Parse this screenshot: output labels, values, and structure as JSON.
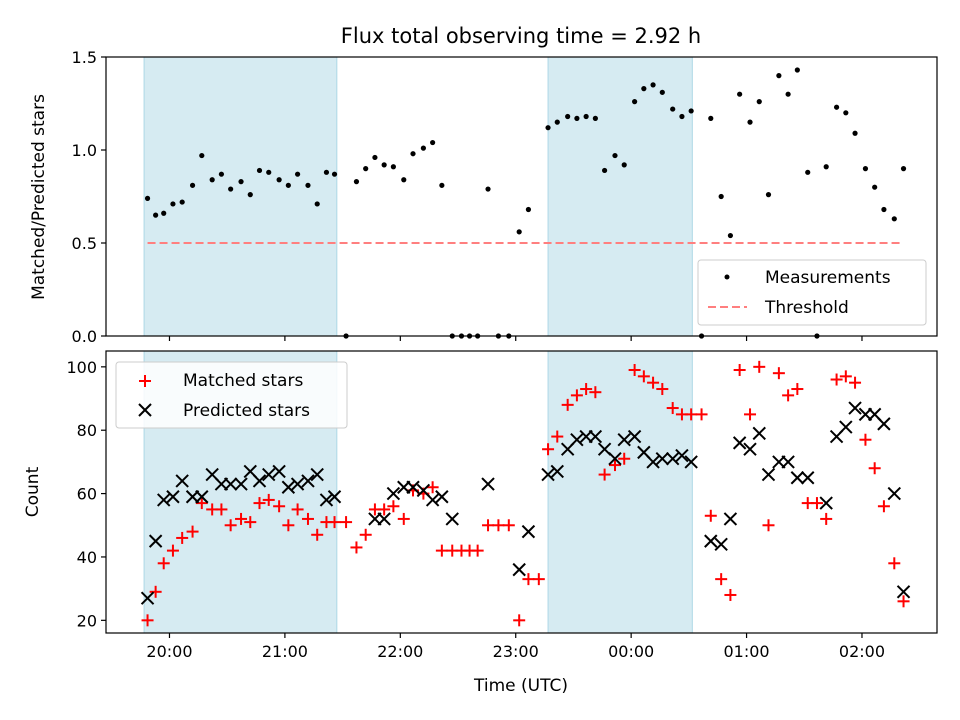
{
  "chart_data": {
    "title": "Flux total observing time = 2.92 h",
    "xlabel": "Time (UTC)",
    "x_unit": "hours (UTC) past 00:00 of first night; 24+ = next day",
    "xlim": [
      19.45,
      26.65
    ],
    "x_ticks": [
      {
        "value": 20,
        "label": "20:00"
      },
      {
        "value": 21,
        "label": "21:00"
      },
      {
        "value": 22,
        "label": "22:00"
      },
      {
        "value": 23,
        "label": "23:00"
      },
      {
        "value": 24,
        "label": "00:00"
      },
      {
        "value": 25,
        "label": "01:00"
      },
      {
        "value": 26,
        "label": "02:00"
      }
    ],
    "shaded_intervals": [
      [
        19.78,
        21.45
      ],
      [
        23.28,
        24.53
      ]
    ],
    "shade_color": "#add8e6",
    "panels": [
      {
        "id": "ratio",
        "type": "scatter",
        "ylabel": "Matched/Predicted stars",
        "ylim": [
          0,
          1.5
        ],
        "y_ticks": [
          0.0,
          0.5,
          1.0,
          1.5
        ],
        "y_tick_labels": [
          "0.0",
          "0.5",
          "1.0",
          "1.5"
        ],
        "legend_position": "lower-right",
        "series": [
          {
            "name": "Measurements",
            "marker": "dot",
            "color": "#000000",
            "points": [
              [
                19.81,
                0.74
              ],
              [
                19.88,
                0.65
              ],
              [
                19.95,
                0.66
              ],
              [
                20.03,
                0.71
              ],
              [
                20.11,
                0.72
              ],
              [
                20.2,
                0.81
              ],
              [
                20.28,
                0.97
              ],
              [
                20.37,
                0.84
              ],
              [
                20.45,
                0.87
              ],
              [
                20.53,
                0.79
              ],
              [
                20.62,
                0.83
              ],
              [
                20.7,
                0.76
              ],
              [
                20.78,
                0.89
              ],
              [
                20.86,
                0.88
              ],
              [
                20.95,
                0.84
              ],
              [
                21.03,
                0.81
              ],
              [
                21.11,
                0.87
              ],
              [
                21.2,
                0.81
              ],
              [
                21.28,
                0.71
              ],
              [
                21.36,
                0.88
              ],
              [
                21.43,
                0.87
              ],
              [
                21.53,
                0.0
              ],
              [
                21.62,
                0.83
              ],
              [
                21.7,
                0.9
              ],
              [
                21.78,
                0.96
              ],
              [
                21.86,
                0.92
              ],
              [
                21.94,
                0.91
              ],
              [
                22.03,
                0.84
              ],
              [
                22.11,
                0.98
              ],
              [
                22.2,
                1.01
              ],
              [
                22.28,
                1.04
              ],
              [
                22.36,
                0.81
              ],
              [
                22.45,
                0.0
              ],
              [
                22.53,
                0.0
              ],
              [
                22.6,
                0.0
              ],
              [
                22.67,
                0.0
              ],
              [
                22.76,
                0.79
              ],
              [
                22.85,
                0.0
              ],
              [
                22.94,
                0.0
              ],
              [
                23.03,
                0.56
              ],
              [
                23.11,
                0.68
              ],
              [
                23.28,
                1.12
              ],
              [
                23.36,
                1.15
              ],
              [
                23.45,
                1.18
              ],
              [
                23.53,
                1.17
              ],
              [
                23.61,
                1.18
              ],
              [
                23.69,
                1.17
              ],
              [
                23.77,
                0.89
              ],
              [
                23.86,
                0.97
              ],
              [
                23.94,
                0.92
              ],
              [
                24.03,
                1.26
              ],
              [
                24.11,
                1.33
              ],
              [
                24.19,
                1.35
              ],
              [
                24.27,
                1.31
              ],
              [
                24.36,
                1.22
              ],
              [
                24.44,
                1.18
              ],
              [
                24.52,
                1.21
              ],
              [
                24.61,
                0.0
              ],
              [
                24.69,
                1.17
              ],
              [
                24.78,
                0.75
              ],
              [
                24.86,
                0.54
              ],
              [
                24.94,
                1.3
              ],
              [
                25.03,
                1.15
              ],
              [
                25.11,
                1.26
              ],
              [
                25.19,
                0.76
              ],
              [
                25.28,
                1.4
              ],
              [
                25.36,
                1.3
              ],
              [
                25.44,
                1.43
              ],
              [
                25.53,
                0.88
              ],
              [
                25.61,
                0.0
              ],
              [
                25.69,
                0.91
              ],
              [
                25.78,
                1.23
              ],
              [
                25.86,
                1.2
              ],
              [
                25.94,
                1.09
              ],
              [
                26.03,
                0.9
              ],
              [
                26.11,
                0.8
              ],
              [
                26.19,
                0.68
              ],
              [
                26.28,
                0.63
              ],
              [
                26.36,
                0.9
              ]
            ]
          },
          {
            "name": "Threshold",
            "marker": "dashed-line",
            "color": "#ff7f7f",
            "points": [
              [
                19.81,
                0.5
              ],
              [
                26.36,
                0.5
              ]
            ]
          }
        ]
      },
      {
        "id": "counts",
        "type": "scatter",
        "ylabel": "Count",
        "ylim": [
          16,
          105
        ],
        "y_ticks": [
          20,
          40,
          60,
          80,
          100
        ],
        "y_tick_labels": [
          "20",
          "40",
          "60",
          "80",
          "100"
        ],
        "legend_position": "upper-left",
        "series": [
          {
            "name": "Matched stars",
            "marker": "plus",
            "color": "#ff0000",
            "points": [
              [
                19.81,
                20
              ],
              [
                19.88,
                29
              ],
              [
                19.95,
                38
              ],
              [
                20.03,
                42
              ],
              [
                20.11,
                46
              ],
              [
                20.2,
                48
              ],
              [
                20.28,
                57
              ],
              [
                20.37,
                55
              ],
              [
                20.45,
                55
              ],
              [
                20.53,
                50
              ],
              [
                20.62,
                52
              ],
              [
                20.7,
                51
              ],
              [
                20.78,
                57
              ],
              [
                20.86,
                58
              ],
              [
                20.95,
                56
              ],
              [
                21.03,
                50
              ],
              [
                21.11,
                55
              ],
              [
                21.2,
                52
              ],
              [
                21.28,
                47
              ],
              [
                21.36,
                51
              ],
              [
                21.43,
                51
              ],
              [
                21.53,
                51
              ],
              [
                21.62,
                43
              ],
              [
                21.7,
                47
              ],
              [
                21.78,
                55
              ],
              [
                21.86,
                55
              ],
              [
                21.94,
                56
              ],
              [
                22.03,
                52
              ],
              [
                22.11,
                61
              ],
              [
                22.2,
                60
              ],
              [
                22.28,
                62
              ],
              [
                22.36,
                42
              ],
              [
                22.45,
                42
              ],
              [
                22.53,
                42
              ],
              [
                22.6,
                42
              ],
              [
                22.67,
                42
              ],
              [
                22.76,
                50
              ],
              [
                22.85,
                50
              ],
              [
                22.94,
                50
              ],
              [
                23.03,
                20
              ],
              [
                23.11,
                33
              ],
              [
                23.2,
                33
              ],
              [
                23.28,
                74
              ],
              [
                23.36,
                78
              ],
              [
                23.45,
                88
              ],
              [
                23.53,
                91
              ],
              [
                23.61,
                93
              ],
              [
                23.69,
                92
              ],
              [
                23.77,
                66
              ],
              [
                23.86,
                69
              ],
              [
                23.94,
                71
              ],
              [
                24.03,
                99
              ],
              [
                24.11,
                97
              ],
              [
                24.19,
                95
              ],
              [
                24.27,
                93
              ],
              [
                24.36,
                87
              ],
              [
                24.44,
                85
              ],
              [
                24.52,
                85
              ],
              [
                24.61,
                85
              ],
              [
                24.69,
                53
              ],
              [
                24.78,
                33
              ],
              [
                24.86,
                28
              ],
              [
                24.94,
                99
              ],
              [
                25.03,
                85
              ],
              [
                25.11,
                100
              ],
              [
                25.19,
                50
              ],
              [
                25.28,
                98
              ],
              [
                25.36,
                91
              ],
              [
                25.44,
                93
              ],
              [
                25.53,
                57
              ],
              [
                25.61,
                57
              ],
              [
                25.69,
                52
              ],
              [
                25.78,
                96
              ],
              [
                25.86,
                97
              ],
              [
                25.94,
                95
              ],
              [
                26.03,
                77
              ],
              [
                26.11,
                68
              ],
              [
                26.19,
                56
              ],
              [
                26.28,
                38
              ],
              [
                26.36,
                26
              ]
            ]
          },
          {
            "name": "Predicted stars",
            "marker": "x",
            "color": "#000000",
            "points": [
              [
                19.81,
                27
              ],
              [
                19.88,
                45
              ],
              [
                19.95,
                58
              ],
              [
                20.03,
                59
              ],
              [
                20.11,
                64
              ],
              [
                20.2,
                59
              ],
              [
                20.28,
                59
              ],
              [
                20.37,
                66
              ],
              [
                20.45,
                63
              ],
              [
                20.53,
                63
              ],
              [
                20.62,
                63
              ],
              [
                20.7,
                67
              ],
              [
                20.78,
                64
              ],
              [
                20.86,
                66
              ],
              [
                20.95,
                67
              ],
              [
                21.03,
                62
              ],
              [
                21.11,
                63
              ],
              [
                21.2,
                64
              ],
              [
                21.28,
                66
              ],
              [
                21.36,
                58
              ],
              [
                21.43,
                59
              ],
              [
                21.78,
                52
              ],
              [
                21.86,
                52
              ],
              [
                21.94,
                60
              ],
              [
                22.03,
                62
              ],
              [
                22.11,
                62
              ],
              [
                22.2,
                61
              ],
              [
                22.28,
                58
              ],
              [
                22.36,
                59
              ],
              [
                22.45,
                52
              ],
              [
                22.76,
                63
              ],
              [
                23.03,
                36
              ],
              [
                23.11,
                48
              ],
              [
                23.28,
                66
              ],
              [
                23.36,
                67
              ],
              [
                23.45,
                74
              ],
              [
                23.53,
                77
              ],
              [
                23.61,
                78
              ],
              [
                23.69,
                78
              ],
              [
                23.77,
                74
              ],
              [
                23.86,
                71
              ],
              [
                23.94,
                77
              ],
              [
                24.03,
                78
              ],
              [
                24.11,
                73
              ],
              [
                24.19,
                70
              ],
              [
                24.27,
                71
              ],
              [
                24.36,
                71
              ],
              [
                24.44,
                72
              ],
              [
                24.52,
                70
              ],
              [
                24.69,
                45
              ],
              [
                24.78,
                44
              ],
              [
                24.86,
                52
              ],
              [
                24.94,
                76
              ],
              [
                25.03,
                74
              ],
              [
                25.11,
                79
              ],
              [
                25.19,
                66
              ],
              [
                25.28,
                70
              ],
              [
                25.36,
                70
              ],
              [
                25.44,
                65
              ],
              [
                25.53,
                65
              ],
              [
                25.69,
                57
              ],
              [
                25.78,
                78
              ],
              [
                25.86,
                81
              ],
              [
                25.94,
                87
              ],
              [
                26.03,
                85
              ],
              [
                26.11,
                85
              ],
              [
                26.19,
                82
              ],
              [
                26.28,
                60
              ],
              [
                26.36,
                29
              ]
            ]
          }
        ]
      }
    ]
  }
}
